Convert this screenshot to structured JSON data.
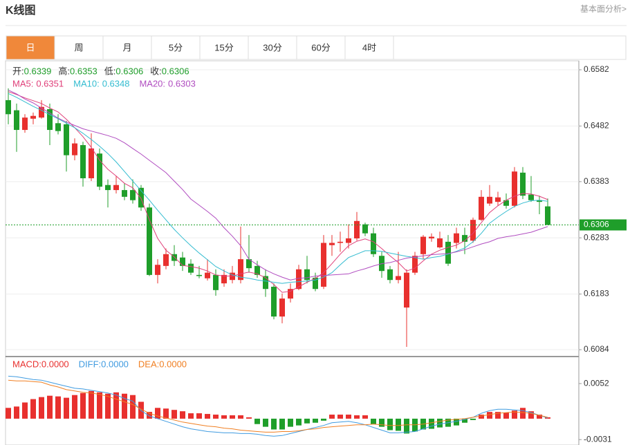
{
  "header": {
    "title": "K线图",
    "link": "基本面分析>"
  },
  "tabs": {
    "items": [
      "日",
      "周",
      "月",
      "5分",
      "15分",
      "30分",
      "60分",
      "4时"
    ],
    "active": 0
  },
  "chart_data": [
    {
      "type": "candlestick",
      "up_color": "#e8302e",
      "down_color": "#1f9e2a",
      "grid": true,
      "ylim": [
        0.6073,
        0.6598
      ],
      "yticks": [
        0.6582,
        0.6482,
        0.6383,
        0.6283,
        0.6183,
        0.6084
      ],
      "readout_labels": [
        "开:",
        "高:",
        "低:",
        "收:"
      ],
      "open": [
        0.6528,
        0.651,
        0.6475,
        0.6495,
        0.6497,
        0.6512,
        0.6487,
        0.6485,
        0.643,
        0.6448,
        0.6389,
        0.6433,
        0.6377,
        0.6368,
        0.6368,
        0.6368,
        0.6372,
        0.6337,
        0.6217,
        0.6233,
        0.6254,
        0.6248,
        0.6237,
        0.6217,
        0.6211,
        0.6217,
        0.6202,
        0.6208,
        0.6208,
        0.6245,
        0.6233,
        0.6215,
        0.6196,
        0.6143,
        0.6175,
        0.6192,
        0.6227,
        0.6212,
        0.6196,
        0.627,
        0.6274,
        0.6274,
        0.6282,
        0.6307,
        0.6291,
        0.6251,
        0.6227,
        0.6208,
        0.6159,
        0.6221,
        0.6254,
        0.6282,
        0.6266,
        0.6276,
        0.6274,
        0.6288,
        0.6278,
        0.6315,
        0.6344,
        0.6347,
        0.635,
        0.634,
        0.6399,
        0.636,
        0.635,
        0.6339
      ],
      "high": [
        0.6549,
        0.6522,
        0.6503,
        0.6506,
        0.6528,
        0.6522,
        0.6503,
        0.6491,
        0.646,
        0.6454,
        0.6469,
        0.6442,
        0.6387,
        0.6393,
        0.638,
        0.6387,
        0.6377,
        0.6344,
        0.6245,
        0.6264,
        0.627,
        0.6258,
        0.6245,
        0.6233,
        0.6245,
        0.6227,
        0.6227,
        0.6233,
        0.6303,
        0.6288,
        0.6242,
        0.6227,
        0.6202,
        0.6184,
        0.6202,
        0.6235,
        0.6251,
        0.6221,
        0.6288,
        0.6288,
        0.6294,
        0.6307,
        0.6329,
        0.631,
        0.6301,
        0.6258,
        0.6233,
        0.6258,
        0.6227,
        0.6258,
        0.6288,
        0.6291,
        0.6294,
        0.6288,
        0.6301,
        0.6301,
        0.6319,
        0.6368,
        0.6377,
        0.6365,
        0.6362,
        0.6409,
        0.6409,
        0.6393,
        0.6358,
        0.6353
      ],
      "low": [
        0.6485,
        0.6436,
        0.647,
        0.6485,
        0.6495,
        0.6448,
        0.6467,
        0.6401,
        0.6421,
        0.6374,
        0.6384,
        0.6368,
        0.6337,
        0.6362,
        0.635,
        0.6344,
        0.6331,
        0.6215,
        0.6202,
        0.6227,
        0.6233,
        0.6224,
        0.6217,
        0.6211,
        0.6207,
        0.618,
        0.6196,
        0.6202,
        0.6202,
        0.6221,
        0.6212,
        0.6178,
        0.6138,
        0.6131,
        0.6168,
        0.619,
        0.6202,
        0.6188,
        0.6192,
        0.6251,
        0.6258,
        0.6264,
        0.6278,
        0.6286,
        0.6249,
        0.6212,
        0.6202,
        0.6202,
        0.6089,
        0.6217,
        0.6245,
        0.6276,
        0.6264,
        0.6233,
        0.6264,
        0.6254,
        0.6274,
        0.6313,
        0.634,
        0.634,
        0.6335,
        0.6337,
        0.6352,
        0.6347,
        0.6325,
        0.6306
      ],
      "close": [
        0.6503,
        0.6475,
        0.6497,
        0.65,
        0.6516,
        0.6475,
        0.6473,
        0.643,
        0.6451,
        0.6389,
        0.6442,
        0.6374,
        0.6368,
        0.6377,
        0.6356,
        0.635,
        0.6337,
        0.6217,
        0.6235,
        0.6254,
        0.6242,
        0.6233,
        0.6221,
        0.6215,
        0.6221,
        0.619,
        0.6217,
        0.6221,
        0.6245,
        0.6229,
        0.6217,
        0.6192,
        0.6143,
        0.6175,
        0.6192,
        0.6227,
        0.6208,
        0.6192,
        0.6274,
        0.6274,
        0.6276,
        0.6282,
        0.6313,
        0.6291,
        0.6254,
        0.6224,
        0.6208,
        0.6215,
        0.6221,
        0.6251,
        0.6285,
        0.6285,
        0.6282,
        0.6237,
        0.6291,
        0.6276,
        0.6315,
        0.6356,
        0.6356,
        0.6355,
        0.634,
        0.6401,
        0.6358,
        0.635,
        0.6347,
        0.6306
      ],
      "series": [
        {
          "name": "MA5:",
          "color": "#e0407a",
          "values": [
            0.6543,
            0.6538,
            0.6532,
            0.6527,
            0.6522,
            0.6514,
            0.6507,
            0.6494,
            0.6479,
            0.6463,
            0.6444,
            0.6421,
            0.6405,
            0.6393,
            0.638,
            0.6372,
            0.6353,
            0.6315,
            0.6282,
            0.6261,
            0.6249,
            0.6234,
            0.6232,
            0.6229,
            0.6224,
            0.6217,
            0.6215,
            0.6215,
            0.6219,
            0.6222,
            0.6219,
            0.6212,
            0.62,
            0.6186,
            0.6188,
            0.6196,
            0.6204,
            0.6211,
            0.6221,
            0.6237,
            0.6254,
            0.6269,
            0.6277,
            0.6281,
            0.6276,
            0.6264,
            0.6251,
            0.6239,
            0.6224,
            0.6229,
            0.6242,
            0.6254,
            0.6261,
            0.6266,
            0.627,
            0.6278,
            0.6291,
            0.631,
            0.6328,
            0.634,
            0.635,
            0.6357,
            0.6362,
            0.6361,
            0.6357,
            0.6351
          ]
        },
        {
          "name": "MA10:",
          "color": "#33bcd0",
          "values": [
            0.654,
            0.6533,
            0.6525,
            0.6517,
            0.651,
            0.6502,
            0.6495,
            0.6487,
            0.6479,
            0.6469,
            0.6458,
            0.6446,
            0.6433,
            0.6418,
            0.6401,
            0.6384,
            0.6367,
            0.635,
            0.6332,
            0.6315,
            0.6298,
            0.6283,
            0.6269,
            0.6256,
            0.6244,
            0.6232,
            0.6224,
            0.6217,
            0.6213,
            0.6211,
            0.6208,
            0.6206,
            0.6204,
            0.6202,
            0.6204,
            0.6205,
            0.6206,
            0.6208,
            0.6213,
            0.6221,
            0.6235,
            0.6248,
            0.6254,
            0.626,
            0.626,
            0.6259,
            0.6256,
            0.6253,
            0.625,
            0.6248,
            0.6245,
            0.6248,
            0.625,
            0.6254,
            0.6259,
            0.6265,
            0.6276,
            0.6291,
            0.6309,
            0.632,
            0.633,
            0.6339,
            0.6345,
            0.6349,
            0.635,
            0.6348
          ]
        },
        {
          "name": "MA20:",
          "color": "#b04cc0",
          "values": [
            0.6546,
            0.6539,
            0.653,
            0.6523,
            0.6514,
            0.6505,
            0.6496,
            0.6489,
            0.6483,
            0.6477,
            0.6473,
            0.6469,
            0.6465,
            0.646,
            0.6452,
            0.6442,
            0.6432,
            0.6421,
            0.641,
            0.6399,
            0.6384,
            0.6369,
            0.6352,
            0.6341,
            0.633,
            0.6318,
            0.6301,
            0.6286,
            0.6269,
            0.6245,
            0.6235,
            0.6226,
            0.6219,
            0.6213,
            0.6208,
            0.6211,
            0.6212,
            0.6215,
            0.6216,
            0.6217,
            0.6218,
            0.6219,
            0.6224,
            0.6228,
            0.6233,
            0.6237,
            0.6239,
            0.6243,
            0.6247,
            0.6249,
            0.6251,
            0.6253,
            0.6254,
            0.6255,
            0.6258,
            0.6262,
            0.6267,
            0.6272,
            0.6276,
            0.6282,
            0.6285,
            0.6287,
            0.629,
            0.6293,
            0.6298,
            0.6303
          ]
        }
      ]
    },
    {
      "type": "macd",
      "ylim": [
        -0.0039,
        0.0091
      ],
      "yticks": [
        0.0052,
        -0.0031
      ],
      "series": [
        {
          "label": "MACD:0.0000",
          "type": "bar",
          "color": "#e8302e",
          "negative_color": "#1f9e2a",
          "values": [
            0.0016,
            0.0018,
            0.0024,
            0.0029,
            0.0032,
            0.0034,
            0.0033,
            0.0031,
            0.0035,
            0.0038,
            0.0041,
            0.0039,
            0.0037,
            0.0039,
            0.0037,
            0.0035,
            0.0025,
            0.001,
            0.0016,
            0.0015,
            0.0013,
            0.0011,
            0.0008,
            0.0008,
            0.0007,
            0.0006,
            0.0005,
            0.0005,
            0.0005,
            0.0002,
            -0.0008,
            -0.0012,
            -0.0016,
            -0.0016,
            -0.0012,
            -0.001,
            -0.0007,
            -0.0006,
            -0.0003,
            0.0006,
            0.0006,
            0.0006,
            0.0005,
            0.0005,
            -0.0008,
            -0.0012,
            -0.0017,
            -0.0018,
            -0.0022,
            -0.0019,
            -0.0016,
            -0.0015,
            -0.0013,
            -0.0012,
            -0.001,
            -0.0006,
            -0.0002,
            0.0006,
            0.001,
            0.001,
            0.0009,
            0.0012,
            0.0016,
            0.0011,
            0.0006,
            0.0002
          ]
        },
        {
          "label": "DIFF:0.0000",
          "type": "line",
          "color": "#3f9be0",
          "values": [
            0.0063,
            0.0062,
            0.006,
            0.0058,
            0.0057,
            0.0054,
            0.0051,
            0.0048,
            0.0045,
            0.0044,
            0.0042,
            0.004,
            0.0038,
            0.0035,
            0.003,
            0.0026,
            0.0012,
            0.0004,
            0,
            -0.0004,
            -0.0008,
            -0.0012,
            -0.0015,
            -0.0017,
            -0.0019,
            -0.002,
            -0.0021,
            -0.0021,
            -0.0022,
            -0.0022,
            -0.0023,
            -0.0025,
            -0.0026,
            -0.0025,
            -0.0022,
            -0.0019,
            -0.0016,
            -0.0013,
            -0.001,
            -0.0006,
            -0.0005,
            -0.0004,
            -0.0006,
            -0.0009,
            -0.0013,
            -0.0017,
            -0.0021,
            -0.0021,
            -0.002,
            -0.0019,
            -0.0015,
            -0.0011,
            -0.0008,
            -0.0006,
            -0.0004,
            -0.0001,
            0.0002,
            0.0008,
            0.0012,
            0.0014,
            0.0014,
            0.0013,
            0.0012,
            0.0009,
            0.0005,
            0.0001
          ]
        },
        {
          "label": "DEA:0.0000",
          "type": "line",
          "color": "#f07f22",
          "values": [
            0.0057,
            0.0056,
            0.0056,
            0.0055,
            0.0054,
            0.005,
            0.0047,
            0.0043,
            0.0041,
            0.0039,
            0.0038,
            0.0036,
            0.0033,
            0.0029,
            0.0025,
            0.0021,
            0.0014,
            0.0008,
            0.0004,
            0.0001,
            -0.0002,
            -0.0005,
            -0.0007,
            -0.0009,
            -0.0011,
            -0.0012,
            -0.0014,
            -0.0015,
            -0.0017,
            -0.0018,
            -0.0019,
            -0.002,
            -0.002,
            -0.0019,
            -0.0019,
            -0.0018,
            -0.0016,
            -0.0015,
            -0.0013,
            -0.0012,
            -0.0011,
            -0.001,
            -0.0009,
            -0.0009,
            -0.0008,
            -0.0009,
            -0.001,
            -0.001,
            -0.0009,
            -0.0009,
            -0.0008,
            -0.0006,
            -0.0004,
            -0.0002,
            -0.0001,
            0,
            0.0002,
            0.0004,
            0.0006,
            0.0008,
            0.0009,
            0.001,
            0.0009,
            0.0008,
            0.0005,
            0.0002
          ]
        }
      ]
    }
  ]
}
